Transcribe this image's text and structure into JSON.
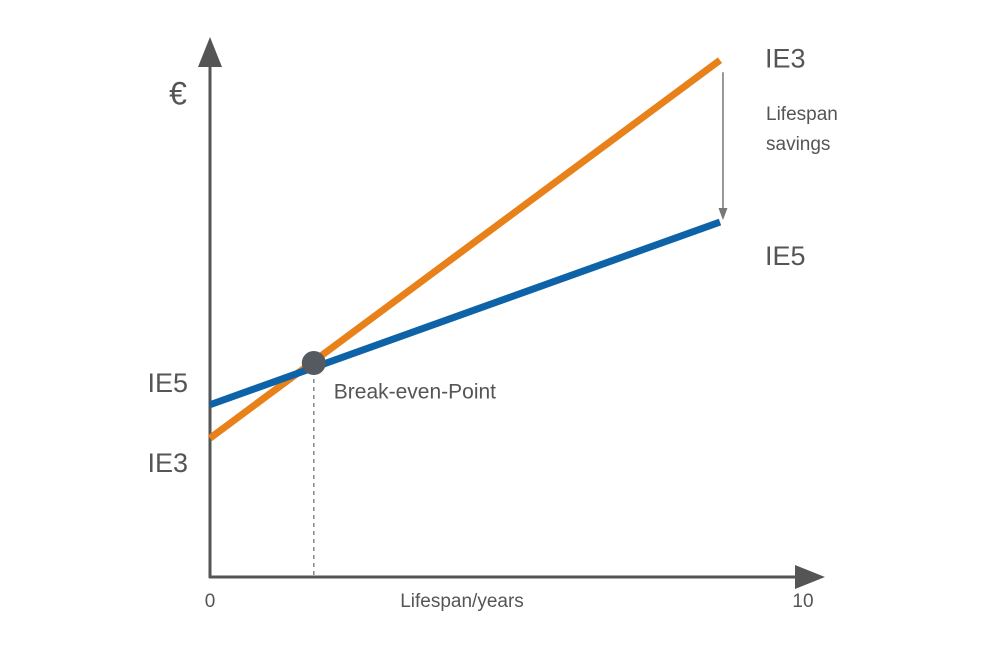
{
  "chart_data": {
    "type": "line",
    "y_label": "€",
    "x_label": "Lifespan/years",
    "xlim": [
      0,
      10
    ],
    "xticks": [
      0,
      10
    ],
    "ylim": [
      0,
      100
    ],
    "yticks": [
      {
        "value": 36.8,
        "label": "IE5"
      },
      {
        "value": 21.5,
        "label": "IE3"
      }
    ],
    "x": [
      0,
      8.6
    ],
    "series": [
      {
        "name": "IE3",
        "color": "#e8811a",
        "values": [
          26.6,
          99
        ]
      },
      {
        "name": "IE5",
        "color": "#0d62a8",
        "values": [
          33,
          68
        ]
      }
    ],
    "break_even": {
      "label": "Break-even-Point",
      "x": 1.75,
      "y": 41
    },
    "annotation": "Lifespan savings"
  }
}
